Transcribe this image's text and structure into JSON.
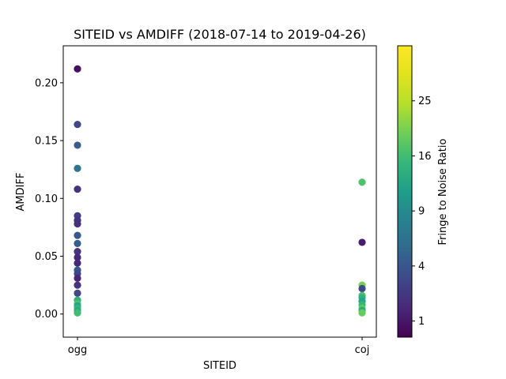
{
  "chart_data": {
    "type": "scatter",
    "title": "SITEID vs AMDIFF (2018-07-14 to 2019-04-26)",
    "xlabel": "SITEID",
    "ylabel": "AMDIFF",
    "categories": [
      "ogg",
      "coj"
    ],
    "ylim": [
      -0.02,
      0.232
    ],
    "yticks": [
      0.0,
      0.05,
      0.1,
      0.15,
      0.2
    ],
    "ytick_labels": [
      "0.00",
      "0.05",
      "0.10",
      "0.15",
      "0.20"
    ],
    "grid": false,
    "colorbar": {
      "label": "Fringe to Noise Ratio",
      "colormap": "viridis",
      "scale": "sqrt",
      "range": [
        0.5,
        36
      ],
      "ticks": [
        1,
        4,
        9,
        16,
        25
      ],
      "tick_labels": [
        "1",
        "4",
        "9",
        "16",
        "25"
      ]
    },
    "points": [
      {
        "site": "ogg",
        "amdiff": 0.212,
        "fnr": 0.8
      },
      {
        "site": "ogg",
        "amdiff": 0.164,
        "fnr": 3
      },
      {
        "site": "ogg",
        "amdiff": 0.146,
        "fnr": 4.5
      },
      {
        "site": "ogg",
        "amdiff": 0.126,
        "fnr": 6.5
      },
      {
        "site": "ogg",
        "amdiff": 0.108,
        "fnr": 2
      },
      {
        "site": "ogg",
        "amdiff": 0.085,
        "fnr": 2.5
      },
      {
        "site": "ogg",
        "amdiff": 0.081,
        "fnr": 2
      },
      {
        "site": "ogg",
        "amdiff": 0.078,
        "fnr": 2
      },
      {
        "site": "ogg",
        "amdiff": 0.068,
        "fnr": 4
      },
      {
        "site": "ogg",
        "amdiff": 0.061,
        "fnr": 4.5
      },
      {
        "site": "ogg",
        "amdiff": 0.054,
        "fnr": 2
      },
      {
        "site": "ogg",
        "amdiff": 0.049,
        "fnr": 1.5
      },
      {
        "site": "ogg",
        "amdiff": 0.044,
        "fnr": 1.5
      },
      {
        "site": "ogg",
        "amdiff": 0.038,
        "fnr": 4
      },
      {
        "site": "ogg",
        "amdiff": 0.035,
        "fnr": 3
      },
      {
        "site": "ogg",
        "amdiff": 0.031,
        "fnr": 1.5
      },
      {
        "site": "ogg",
        "amdiff": 0.025,
        "fnr": 2
      },
      {
        "site": "ogg",
        "amdiff": 0.018,
        "fnr": 3
      },
      {
        "site": "ogg",
        "amdiff": 0.012,
        "fnr": 14
      },
      {
        "site": "ogg",
        "amdiff": 0.009,
        "fnr": 17
      },
      {
        "site": "ogg",
        "amdiff": 0.007,
        "fnr": 12
      },
      {
        "site": "ogg",
        "amdiff": 0.005,
        "fnr": 15
      },
      {
        "site": "ogg",
        "amdiff": 0.003,
        "fnr": 13
      },
      {
        "site": "ogg",
        "amdiff": 0.001,
        "fnr": 16
      },
      {
        "site": "coj",
        "amdiff": 0.114,
        "fnr": 17
      },
      {
        "site": "coj",
        "amdiff": 0.062,
        "fnr": 1.2
      },
      {
        "site": "coj",
        "amdiff": 0.025,
        "fnr": 20
      },
      {
        "site": "coj",
        "amdiff": 0.022,
        "fnr": 3
      },
      {
        "site": "coj",
        "amdiff": 0.016,
        "fnr": 17
      },
      {
        "site": "coj",
        "amdiff": 0.014,
        "fnr": 14
      },
      {
        "site": "coj",
        "amdiff": 0.011,
        "fnr": 12
      },
      {
        "site": "coj",
        "amdiff": 0.008,
        "fnr": 15
      },
      {
        "site": "coj",
        "amdiff": 0.005,
        "fnr": 18
      },
      {
        "site": "coj",
        "amdiff": 0.003,
        "fnr": 13
      },
      {
        "site": "coj",
        "amdiff": 0.001,
        "fnr": 19
      }
    ]
  }
}
